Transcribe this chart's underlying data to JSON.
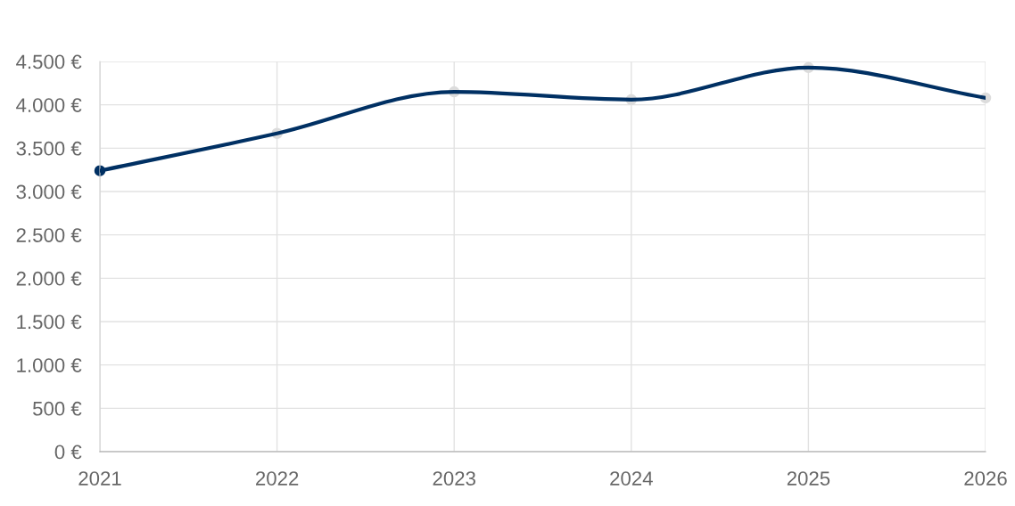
{
  "chart_data": {
    "type": "line",
    "categories": [
      "2021",
      "2022",
      "2023",
      "2024",
      "2025",
      "2026"
    ],
    "series": [
      {
        "color": "#003063",
        "colors": [
          "#003063",
          "#dcdcdc",
          "#dcdcdc",
          "#dcdcdc",
          "#dcdcdc",
          "#dcdcdc"
        ],
        "values": [
          3240,
          3670,
          4150,
          4060,
          4430,
          4080
        ]
      }
    ],
    "ylim": [
      0,
      4500
    ],
    "yticks": [
      {
        "value": 0,
        "label": "0 €"
      },
      {
        "value": 500,
        "label": "500 €"
      },
      {
        "value": 1000,
        "label": "1.000 €"
      },
      {
        "value": 1500,
        "label": "1.500 €"
      },
      {
        "value": 2000,
        "label": "2.000 €"
      },
      {
        "value": 2500,
        "label": "2.500 €"
      },
      {
        "value": 3000,
        "label": "3.000 €"
      },
      {
        "value": 3500,
        "label": "3.500 €"
      },
      {
        "value": 4000,
        "label": "4.000 €"
      },
      {
        "value": 4500,
        "label": "4.500 €"
      }
    ],
    "grid": true,
    "marker": "circle"
  }
}
